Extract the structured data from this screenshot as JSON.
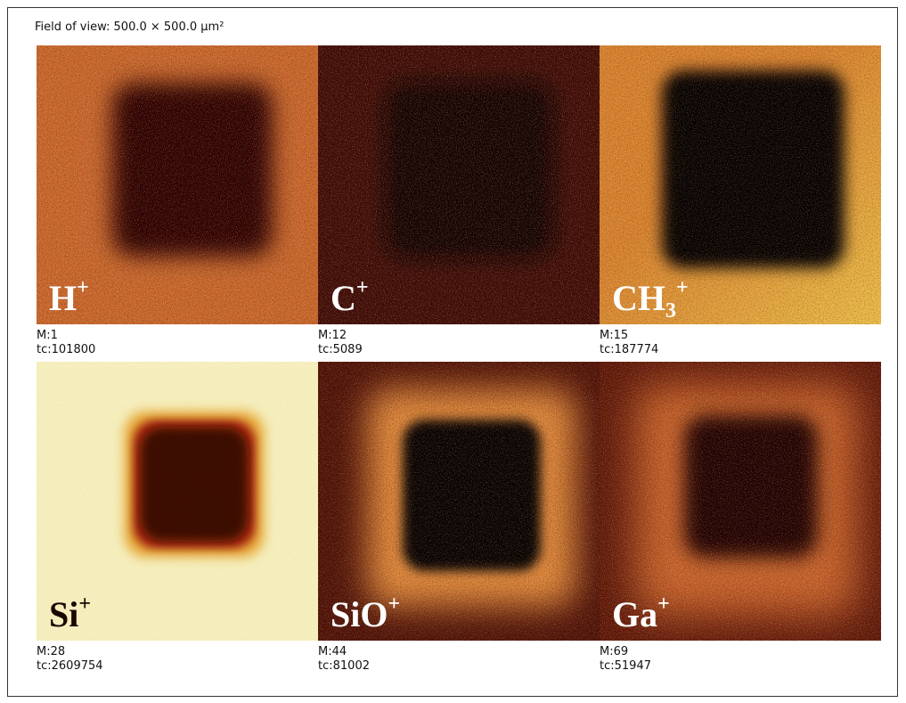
{
  "header": {
    "title": "Field of view: 500.0 × 500.0 µm²"
  },
  "panels": [
    {
      "ion": "H",
      "superscript": "+",
      "mass": "M:1",
      "total_counts": "tc:101800"
    },
    {
      "ion": "C",
      "superscript": "+",
      "mass": "M:12",
      "total_counts": "tc:5089"
    },
    {
      "ion": "CH",
      "subscript": "3",
      "superscript": "+",
      "mass": "M:15",
      "total_counts": "tc:187774"
    },
    {
      "ion": "Si",
      "superscript": "+",
      "mass": "M:28",
      "total_counts": "tc:2609754"
    },
    {
      "ion": "SiO",
      "superscript": "+",
      "mass": "M:44",
      "total_counts": "tc:81002"
    },
    {
      "ion": "Ga",
      "superscript": "+",
      "mass": "M:69",
      "total_counts": "tc:51947"
    }
  ]
}
